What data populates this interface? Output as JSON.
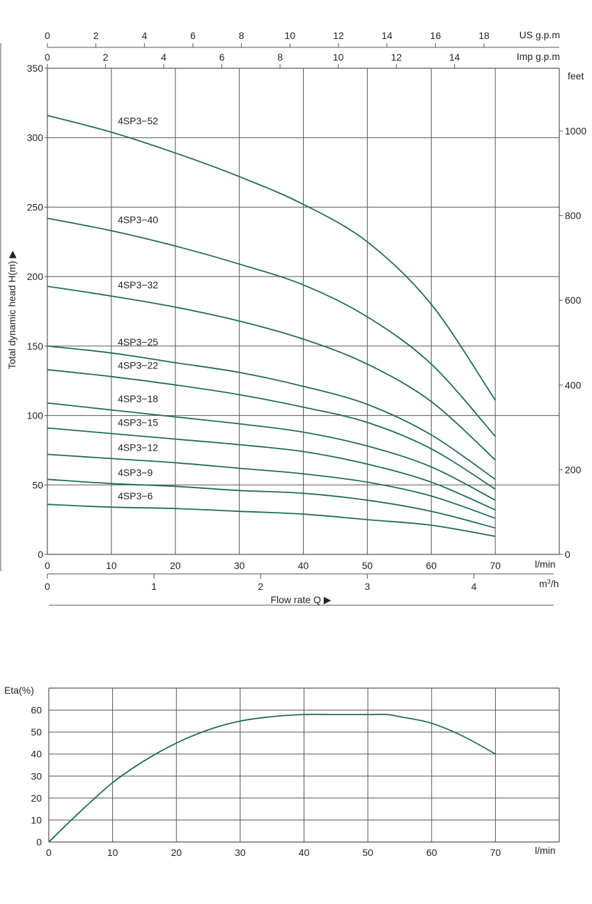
{
  "colors": {
    "curve": "#1f6b57",
    "grid": "#555555",
    "text": "#222222"
  },
  "chart_data": [
    {
      "type": "line",
      "ylabel": "Total dynamic head H(m) ▶",
      "xlabel": "Flow  rate Q ▶",
      "grid": true,
      "axes": {
        "x_lmin": {
          "unit": "l/min",
          "range": [
            0,
            80
          ],
          "ticks": [
            "0",
            "10",
            "20",
            "30",
            "40",
            "50",
            "60",
            "70"
          ]
        },
        "x_m3h": {
          "unit": "m³/h",
          "range": [
            0,
            4.8
          ],
          "ticks": [
            "0",
            "1",
            "2",
            "3",
            "4"
          ]
        },
        "x_usgpm": {
          "unit": "US g.p.m",
          "range": [
            0,
            21.1
          ],
          "ticks": [
            "0",
            "2",
            "4",
            "6",
            "8",
            "10",
            "12",
            "14",
            "16",
            "18"
          ]
        },
        "x_impgpm": {
          "unit": "Imp g.p.m",
          "range": [
            0,
            17.6
          ],
          "ticks": [
            "0",
            "2",
            "4",
            "6",
            "8",
            "10",
            "12",
            "14"
          ]
        },
        "y_m": {
          "unit": "",
          "range": [
            0,
            350
          ],
          "ticks": [
            "0",
            "50",
            "100",
            "150",
            "200",
            "250",
            "300",
            "350"
          ]
        },
        "y_feet": {
          "unit": "feet",
          "range": [
            0,
            1148
          ],
          "ticks": [
            "0",
            "200",
            "400",
            "600",
            "800",
            "1000"
          ]
        }
      },
      "series": [
        {
          "name": "4SP3−52",
          "x": [
            0,
            10,
            20,
            30,
            40,
            50,
            60,
            70
          ],
          "y": [
            316,
            304,
            289,
            272,
            252,
            225,
            180,
            111
          ]
        },
        {
          "name": "4SP3−40",
          "x": [
            0,
            10,
            20,
            30,
            40,
            50,
            60,
            70
          ],
          "y": [
            242,
            233,
            222,
            209,
            194,
            171,
            137,
            85
          ]
        },
        {
          "name": "4SP3−32",
          "x": [
            0,
            10,
            20,
            30,
            40,
            50,
            60,
            70
          ],
          "y": [
            193,
            186,
            178,
            168,
            155,
            137,
            110,
            68
          ]
        },
        {
          "name": "4SP3−25",
          "x": [
            0,
            10,
            20,
            30,
            40,
            50,
            60,
            70
          ],
          "y": [
            150,
            145,
            138,
            131,
            121,
            108,
            86,
            54
          ]
        },
        {
          "name": "4SP3−22",
          "x": [
            0,
            10,
            20,
            30,
            40,
            50,
            60,
            70
          ],
          "y": [
            133,
            128,
            122,
            115,
            106,
            95,
            76,
            47
          ]
        },
        {
          "name": "4SP3−18",
          "x": [
            0,
            10,
            20,
            30,
            40,
            50,
            60,
            70
          ],
          "y": [
            109,
            104,
            99,
            94,
            88,
            78,
            63,
            39
          ]
        },
        {
          "name": "4SP3−15",
          "x": [
            0,
            10,
            20,
            30,
            40,
            50,
            60,
            70
          ],
          "y": [
            91,
            87,
            83,
            79,
            74,
            65,
            52,
            32
          ]
        },
        {
          "name": "4SP3−12",
          "x": [
            0,
            10,
            20,
            30,
            40,
            50,
            60,
            70
          ],
          "y": [
            72,
            69,
            66,
            62,
            58,
            52,
            42,
            26
          ]
        },
        {
          "name": "4SP3−9",
          "x": [
            0,
            10,
            20,
            30,
            40,
            50,
            60,
            70
          ],
          "y": [
            54,
            51,
            49,
            46,
            44,
            39,
            31,
            19
          ]
        },
        {
          "name": "4SP3−6",
          "x": [
            0,
            10,
            20,
            30,
            40,
            50,
            60,
            70
          ],
          "y": [
            36,
            34,
            33,
            31,
            29,
            25,
            21,
            13
          ]
        }
      ]
    },
    {
      "type": "line",
      "ylabel": "Eta(%)",
      "xlabel": "l/min",
      "grid": true,
      "axes": {
        "x": {
          "range": [
            0,
            80
          ],
          "ticks": [
            "0",
            "10",
            "20",
            "30",
            "40",
            "50",
            "60",
            "70"
          ]
        },
        "y": {
          "range": [
            0,
            70
          ],
          "ticks": [
            "0",
            "10",
            "20",
            "30",
            "40",
            "50",
            "60"
          ]
        }
      },
      "series": [
        {
          "name": "",
          "x": [
            0,
            5,
            10,
            15,
            20,
            25,
            30,
            35,
            40,
            45,
            50,
            53,
            55,
            60,
            65,
            70
          ],
          "y": [
            0,
            14,
            27,
            37,
            45,
            51,
            55,
            57,
            58,
            58,
            58,
            58,
            57,
            54,
            48,
            40
          ]
        }
      ]
    }
  ]
}
